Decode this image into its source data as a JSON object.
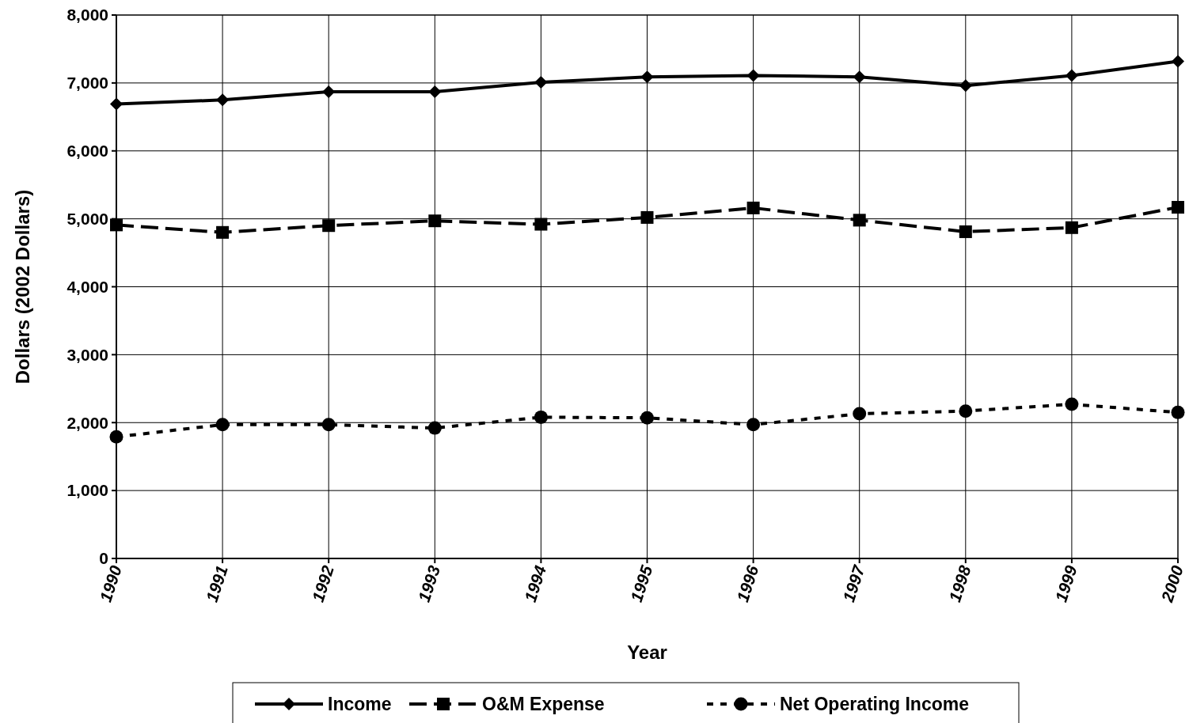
{
  "chart_data": {
    "type": "line",
    "xlabel": "Year",
    "ylabel": "Dollars (2002 Dollars)",
    "categories": [
      "1990",
      "1991",
      "1992",
      "1993",
      "1994",
      "1995",
      "1996",
      "1997",
      "1998",
      "1999",
      "2000"
    ],
    "series": [
      {
        "name": "Income",
        "color": "#000000",
        "marker": "diamond",
        "line_style": "solid",
        "values": [
          6690,
          6750,
          6870,
          6870,
          7010,
          7090,
          7110,
          7090,
          6960,
          7110,
          7320
        ]
      },
      {
        "name": "O&M Expense",
        "color": "#000000",
        "marker": "square",
        "line_style": "dashed",
        "values": [
          4910,
          4800,
          4900,
          4970,
          4920,
          5020,
          5160,
          4980,
          4810,
          4870,
          5170
        ]
      },
      {
        "name": "Net Operating Income",
        "color": "#000000",
        "marker": "circle",
        "line_style": "dotted",
        "values": [
          1790,
          1970,
          1970,
          1920,
          2080,
          2070,
          1970,
          2130,
          2170,
          2270,
          2150
        ]
      }
    ],
    "ylim": [
      0,
      8000
    ],
    "yticks": [
      {
        "value": 0,
        "label": "0"
      },
      {
        "value": 1000,
        "label": "1,000"
      },
      {
        "value": 2000,
        "label": "2,000"
      },
      {
        "value": 3000,
        "label": "3,000"
      },
      {
        "value": 4000,
        "label": "4,000"
      },
      {
        "value": 5000,
        "label": "5,000"
      },
      {
        "value": 6000,
        "label": "6,000"
      },
      {
        "value": 7000,
        "label": "7,000"
      },
      {
        "value": 8000,
        "label": "8,000"
      }
    ],
    "grid": true,
    "legend": "bottom"
  }
}
